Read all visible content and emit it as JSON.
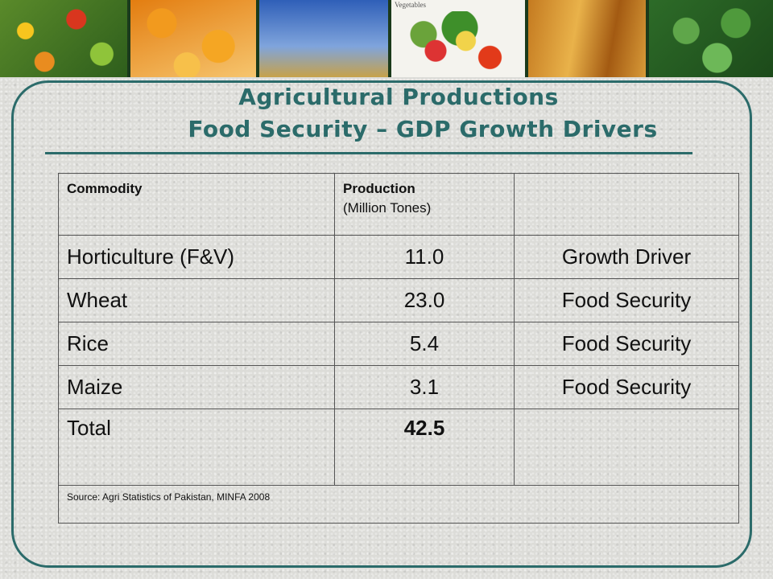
{
  "banner": {
    "photos": [
      {
        "name": "mixed-fruit-photo"
      },
      {
        "name": "oranges-juice-photo"
      },
      {
        "name": "rice-plant-photo"
      },
      {
        "name": "vegetables-photo",
        "label": "Vegetables"
      },
      {
        "name": "wheat-photo"
      },
      {
        "name": "mint-leaves-photo"
      }
    ]
  },
  "title": {
    "line1": "Agricultural Productions",
    "line2": "Food Security – GDP Growth Drivers"
  },
  "colors": {
    "accent": "#2b6b6a"
  },
  "table": {
    "headers": {
      "commodity": "Commodity",
      "production": "Production",
      "production_unit": "(Million Tones)",
      "role": ""
    },
    "rows": [
      {
        "commodity": "Horticulture (F&V)",
        "production": "11.0",
        "role": "Growth Driver"
      },
      {
        "commodity": "Wheat",
        "production": "23.0",
        "role": "Food Security"
      },
      {
        "commodity": "Rice",
        "production": "5.4",
        "role": "Food Security"
      },
      {
        "commodity": "Maize",
        "production": "3.1",
        "role": "Food Security"
      }
    ],
    "total": {
      "label": "Total",
      "value": "42.5"
    },
    "source": "Source: Agri Statistics of Pakistan, MINFA 2008"
  }
}
